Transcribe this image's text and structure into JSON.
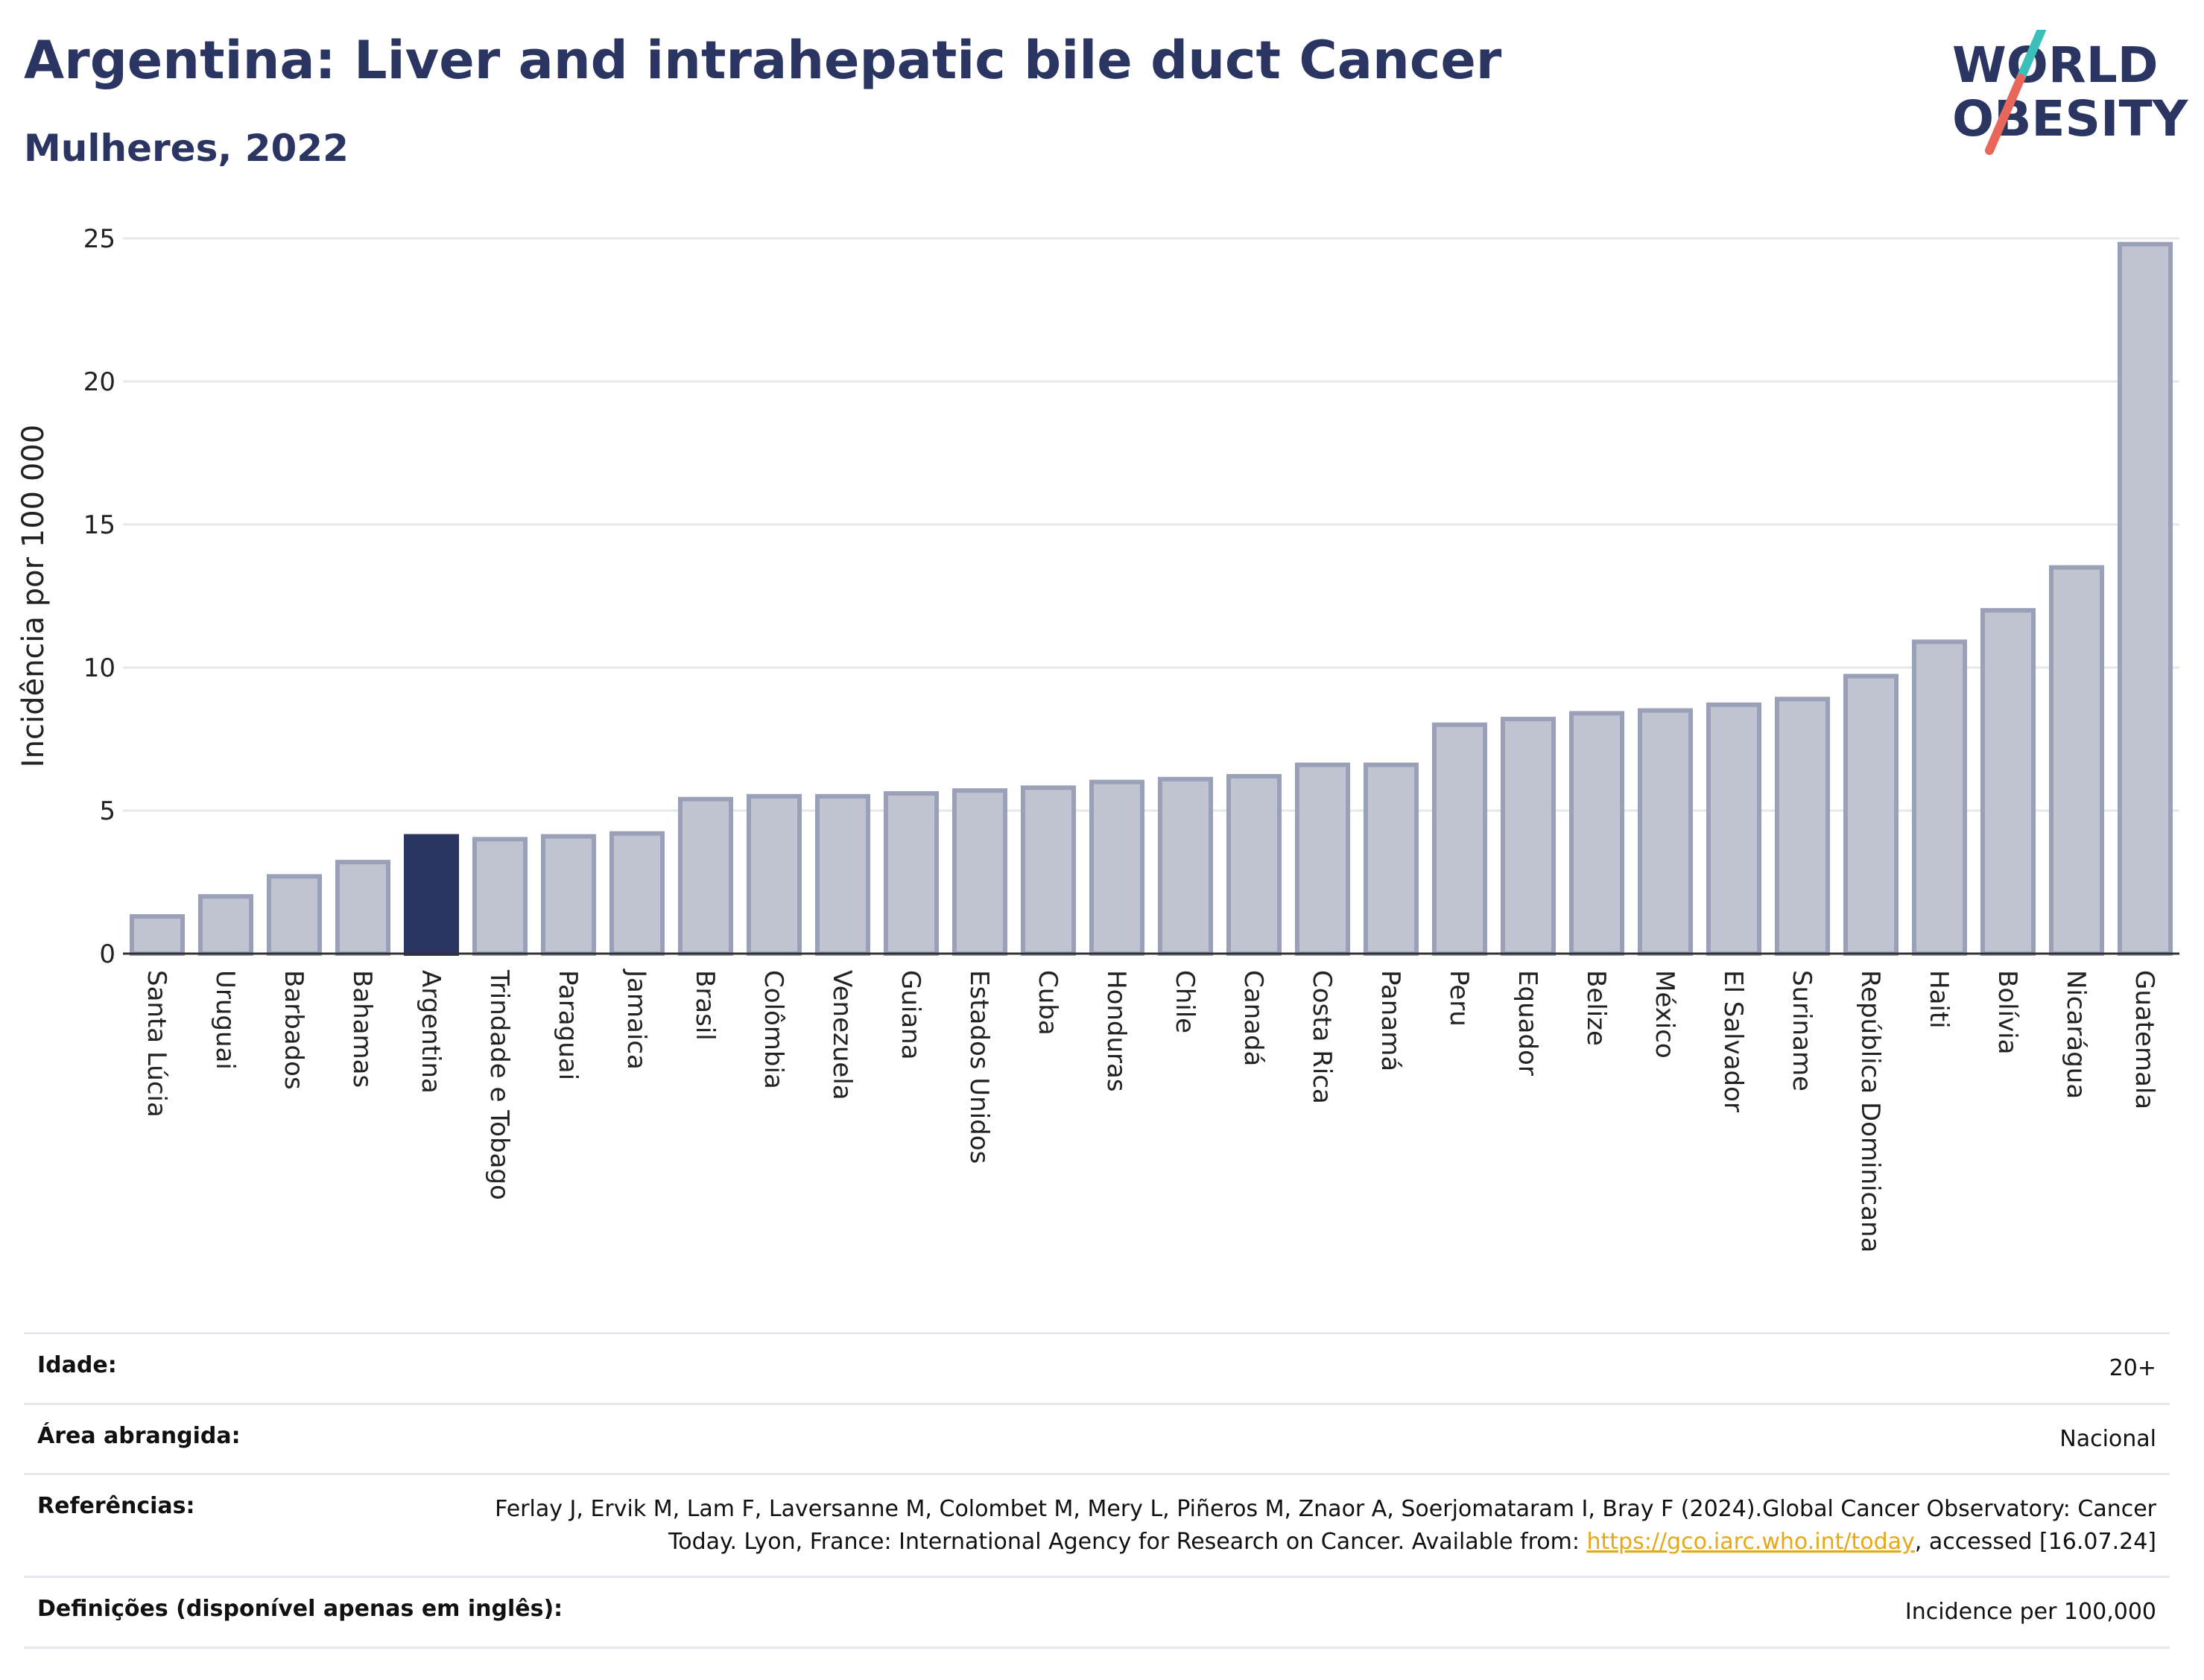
{
  "header": {
    "title": "Argentina: Liver and intrahepatic bile duct Cancer",
    "subtitle": "Mulheres, 2022"
  },
  "logo": {
    "line1": "WORLD",
    "line2": "OBESITY",
    "colors": {
      "text": "#2b3561",
      "slash_top": "#3bbfb9",
      "slash_bottom": "#e8675a"
    }
  },
  "colors": {
    "bar_default": "#c0c4d1",
    "bar_border": "#9aa0b8",
    "bar_highlight": "#2b3561",
    "grid": "#e6e8ee",
    "axis": "#333333"
  },
  "chart_data": {
    "type": "bar",
    "ylabel": "Incidência por 100 000",
    "xlabel": "",
    "ylim": [
      0,
      25
    ],
    "yticks": [
      0,
      5,
      10,
      15,
      20,
      25
    ],
    "grid": true,
    "highlight": "Argentina",
    "categories": [
      "Santa Lúcia",
      "Uruguai",
      "Barbados",
      "Bahamas",
      "Argentina",
      "Trindade e Tobago",
      "Paraguai",
      "Jamaica",
      "Brasil",
      "Colômbia",
      "Venezuela",
      "Guiana",
      "Estados Unidos",
      "Cuba",
      "Honduras",
      "Chile",
      "Canadá",
      "Costa Rica",
      "Panamá",
      "Peru",
      "Equador",
      "Belize",
      "México",
      "El Salvador",
      "Suriname",
      "República Dominicana",
      "Haiti",
      "Bolívia",
      "Nicarágua",
      "Guatemala"
    ],
    "values": [
      1.3,
      2.0,
      2.7,
      3.2,
      4.1,
      4.0,
      4.1,
      4.2,
      5.4,
      5.5,
      5.5,
      5.6,
      5.7,
      5.8,
      6.0,
      6.1,
      6.2,
      6.6,
      6.6,
      8.0,
      8.2,
      8.4,
      8.5,
      8.7,
      8.9,
      9.7,
      10.9,
      12.0,
      13.5,
      24.8
    ]
  },
  "meta": {
    "age_label": "Idade:",
    "age_value": "20+",
    "area_label": "Área abrangida:",
    "area_value": "Nacional",
    "ref_label": "Referências:",
    "ref_text_1": "Ferlay J, Ervik M, Lam F, Laversanne M, Colombet M, Mery L, Piñeros M, Znaor A, Soerjomataram I, Bray F (2024).Global Cancer Observatory: Cancer Today. Lyon, France: International Agency for Research on Cancer. Available from: ",
    "ref_link": "https://gco.iarc.who.int/today",
    "ref_text_2": ", accessed [16.07.24]",
    "def_label": "Definições (disponível apenas em inglês):",
    "def_value": "Incidence per 100,000"
  }
}
